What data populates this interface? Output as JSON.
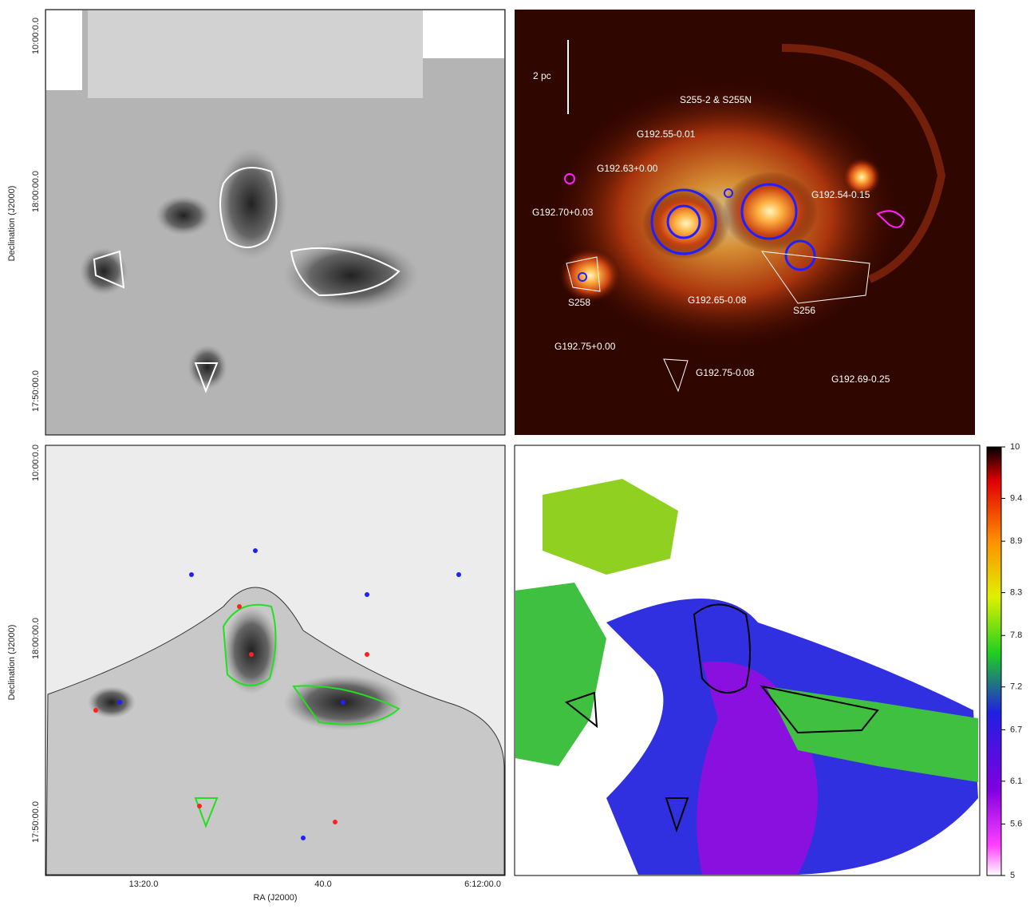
{
  "panels": {
    "top_left": {
      "y_label": "Declination (J2000)",
      "y_ticks": [
        "10:00:0.0",
        "18:00:00.0",
        "17:50:00.0"
      ]
    },
    "top_right": {
      "labels": [
        "2 pc",
        "S255-2 & S255N",
        "G192.55-0.01",
        "G192.63+0.00",
        "G192.54-0.15",
        "G192.70+0.03",
        "S258",
        "G192.65-0.08",
        "S256",
        "G192.75+0.00",
        "G192.75-0.08",
        "G192.69-0.25"
      ]
    },
    "bottom_left": {
      "y_label": "Declination (J2000)",
      "y_ticks": [
        "10:00:0.0",
        "18:00:00.0",
        "17:50:00.0"
      ],
      "x_label": "RA (J2000)",
      "x_ticks": [
        "13:20.0",
        "40.0",
        "6:12:00.0"
      ]
    },
    "bottom_right": {
      "colorbar": {
        "range": [
          5,
          10
        ],
        "ticks": [
          10,
          9.4,
          8.9,
          8.3,
          7.8,
          7.2,
          6.7,
          6.1,
          5.6,
          5
        ]
      }
    }
  }
}
